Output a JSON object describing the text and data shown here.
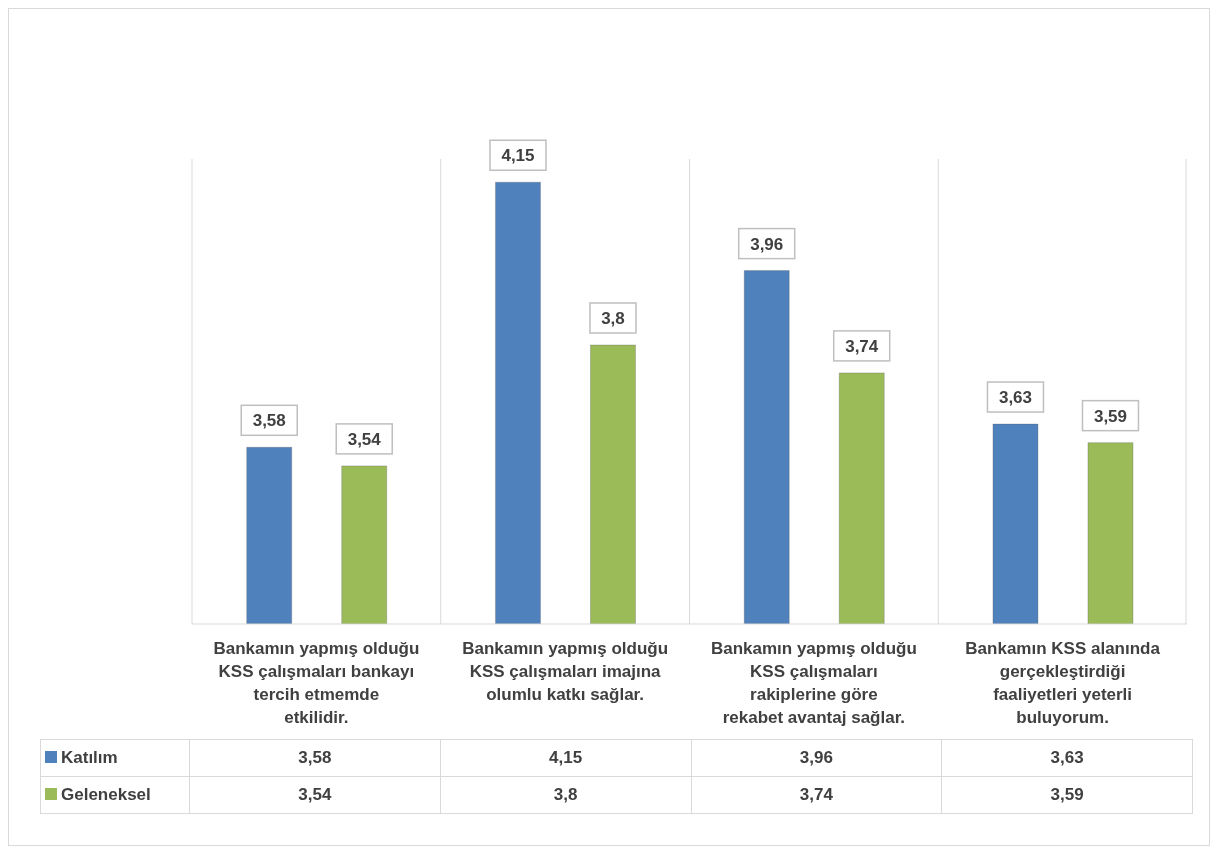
{
  "chart_data": {
    "type": "bar",
    "categories": [
      "Bankamın yapmış olduğu KSS çalışmaları bankayı tercih etmemde etkilidir.",
      "Bankamın yapmış olduğu KSS çalışmaları imajına olumlu katkı sağlar.",
      "Bankamın yapmış olduğu KSS çalışmaları rakiplerine göre rekabet avantaj sağlar.",
      "Bankamın KSS alanında gerçekleştirdiği faaliyetleri yeterli buluyorum."
    ],
    "series": [
      {
        "name": "Katılım",
        "color": "#4f81bd",
        "values": [
          3.58,
          4.15,
          3.96,
          3.63
        ],
        "value_labels": [
          "3,58",
          "4,15",
          "3,96",
          "3,63"
        ]
      },
      {
        "name": "Geleneksel",
        "color": "#9bbb59",
        "values": [
          3.54,
          3.8,
          3.74,
          3.59
        ],
        "value_labels": [
          "3,54",
          "3,8",
          "3,74",
          "3,59"
        ]
      }
    ],
    "ylim": [
      3.2,
      4.2
    ],
    "legend": "bottom"
  }
}
